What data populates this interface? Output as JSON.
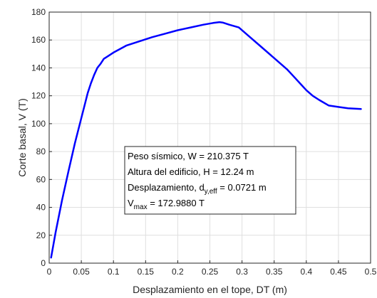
{
  "chart_data": {
    "type": "line",
    "xlabel": "Desplazamiento en el tope, DT (m)",
    "ylabel": "Corte basal, V (T)",
    "xlim": [
      0,
      0.5
    ],
    "ylim": [
      0,
      180
    ],
    "xticks": [
      "0",
      "0.05",
      "0.1",
      "0.15",
      "0.2",
      "0.25",
      "0.3",
      "0.35",
      "0.4",
      "0.45",
      "0.5"
    ],
    "yticks": [
      "0",
      "20",
      "40",
      "60",
      "80",
      "100",
      "120",
      "140",
      "160",
      "180"
    ],
    "grid": true,
    "series": [
      {
        "color": "#0000ff",
        "x": [
          0.003,
          0.01,
          0.02,
          0.03,
          0.04,
          0.05,
          0.055,
          0.06,
          0.065,
          0.07,
          0.075,
          0.08,
          0.085,
          0.09,
          0.1,
          0.11,
          0.12,
          0.14,
          0.16,
          0.18,
          0.2,
          0.22,
          0.24,
          0.255,
          0.265,
          0.27,
          0.28,
          0.295,
          0.31,
          0.33,
          0.35,
          0.36,
          0.37,
          0.38,
          0.39,
          0.4,
          0.41,
          0.42,
          0.435,
          0.45,
          0.465,
          0.485
        ],
        "y": [
          4,
          22,
          45,
          66,
          86,
          104,
          113,
          122,
          129,
          135,
          140,
          143,
          146.5,
          148,
          151,
          153.5,
          156,
          159,
          162,
          164.5,
          167,
          169,
          171,
          172.2,
          172.8,
          172.5,
          171,
          169,
          163,
          155,
          147,
          143,
          139,
          134,
          129,
          124,
          120,
          117,
          113,
          112,
          111,
          110.5
        ]
      }
    ],
    "annotation": {
      "line1": "Peso sísmico, W = 210.375 T",
      "line2": "Altura del edificio, H = 12.24 m",
      "line3_main": "Desplazamiento, d",
      "line3_sub": "y,eff",
      "line3_rest": " = 0.0721 m",
      "line4_main": "V",
      "line4_sub": "max",
      "line4_rest": " = 172.9880 T"
    }
  }
}
